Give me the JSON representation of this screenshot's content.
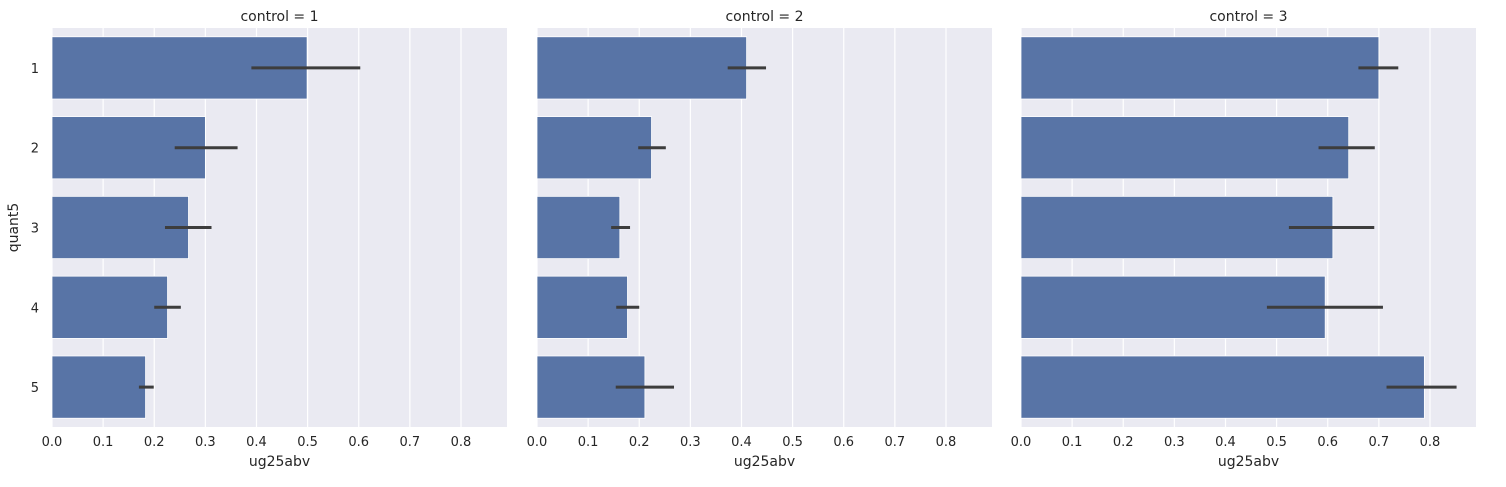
{
  "chart_data": {
    "type": "bar",
    "orientation": "horizontal",
    "facet_variable": "control",
    "xlabel": "ug25abv",
    "ylabel": "quant5",
    "xlim": [
      0,
      0.89
    ],
    "xticks": [
      "0.0",
      "0.1",
      "0.2",
      "0.3",
      "0.4",
      "0.5",
      "0.6",
      "0.7",
      "0.8"
    ],
    "categories": [
      "1",
      "2",
      "3",
      "4",
      "5"
    ],
    "grid": true,
    "bar_color": "#5874a6",
    "errorbar_color": "#3d3d3d",
    "background_color": "#eaeaf2",
    "panels": [
      {
        "title": "control = 1",
        "values": [
          0.499,
          0.3,
          0.267,
          0.226,
          0.183
        ],
        "ci_low": [
          0.39,
          0.24,
          0.221,
          0.2,
          0.17
        ],
        "ci_high": [
          0.603,
          0.363,
          0.312,
          0.252,
          0.199
        ]
      },
      {
        "title": "control = 2",
        "values": [
          0.41,
          0.224,
          0.162,
          0.177,
          0.211
        ],
        "ci_low": [
          0.373,
          0.198,
          0.145,
          0.155,
          0.154
        ],
        "ci_high": [
          0.448,
          0.252,
          0.182,
          0.2,
          0.268
        ]
      },
      {
        "title": "control = 3",
        "values": [
          0.7,
          0.641,
          0.61,
          0.595,
          0.789
        ],
        "ci_low": [
          0.66,
          0.582,
          0.524,
          0.481,
          0.715
        ],
        "ci_high": [
          0.738,
          0.692,
          0.691,
          0.708,
          0.852
        ]
      }
    ]
  }
}
